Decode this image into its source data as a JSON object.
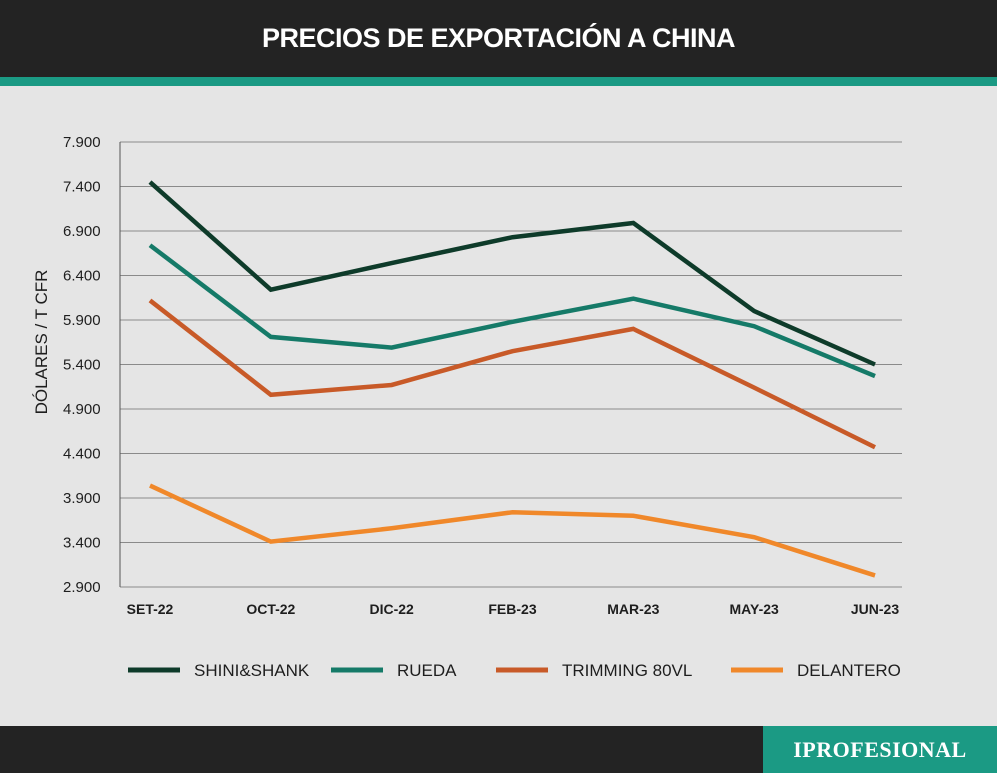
{
  "header": {
    "title": "PRECIOS DE EXPORTACIÓN A CHINA"
  },
  "footer": {
    "brand": "IPROFESIONAL"
  },
  "colors": {
    "background": "#e5e5e5",
    "bar": "#232323",
    "accent": "#1b9a84"
  },
  "chart_data": {
    "type": "line",
    "title": "PRECIOS DE EXPORTACIÓN A CHINA",
    "xlabel": "",
    "ylabel": "DÓLARES / T CFR",
    "categories": [
      "SET-22",
      "OCT-22",
      "DIC-22",
      "FEB-23",
      "MAR-23",
      "MAY-23",
      "JUN-23"
    ],
    "yticks": [
      2900,
      3400,
      3900,
      4400,
      4900,
      5400,
      5900,
      6400,
      6900,
      7400,
      7900
    ],
    "ytick_labels": [
      "2.900",
      "3.400",
      "3.900",
      "4.400",
      "4.900",
      "5.400",
      "5.900",
      "6.400",
      "6.900",
      "7.400",
      "7.900"
    ],
    "ylim": [
      2900,
      7900
    ],
    "grid": true,
    "legend_position": "bottom",
    "series": [
      {
        "name": "SHINI&SHANK",
        "color": "#0e3b2a",
        "values": [
          7450,
          6240,
          6540,
          6830,
          6990,
          6000,
          5400
        ]
      },
      {
        "name": "RUEDA",
        "color": "#157a68",
        "values": [
          6740,
          5710,
          5590,
          5880,
          6140,
          5830,
          5270
        ]
      },
      {
        "name": "TRIMMING 80VL",
        "color": "#c85a28",
        "values": [
          6120,
          5060,
          5170,
          5550,
          5800,
          5140,
          4470
        ]
      },
      {
        "name": "DELANTERO",
        "color": "#f0882a",
        "values": [
          4040,
          3410,
          3560,
          3740,
          3700,
          3460,
          3030
        ]
      }
    ]
  }
}
